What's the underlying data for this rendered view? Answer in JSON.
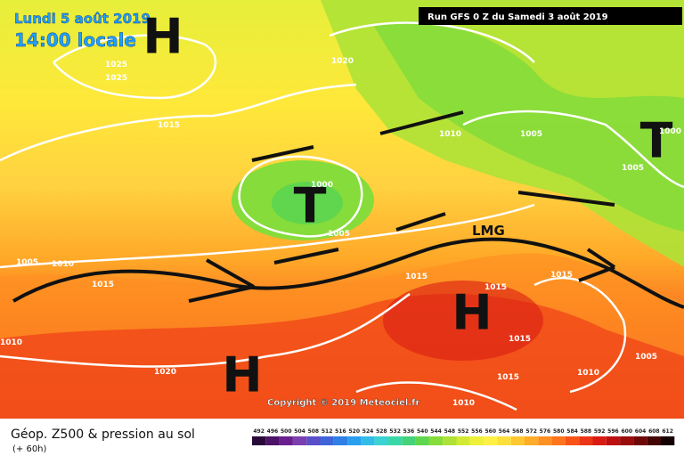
{
  "header": {
    "date": "Lundi 5 août 2019",
    "time": "14:00 locale",
    "run": "Run GFS 0 Z du Samedi 3 août 2019"
  },
  "map": {
    "pressure_systems": [
      "H",
      "T",
      "H",
      "H",
      "T"
    ],
    "isobar_labels": [
      "1025",
      "1025",
      "1020",
      "1015",
      "1010",
      "1005",
      "1005",
      "1000",
      "1000",
      "1005",
      "1005",
      "1010",
      "1015",
      "1015",
      "1015",
      "1015",
      "1015",
      "1010",
      "1020",
      "1015",
      "1010",
      "1005",
      "1010"
    ],
    "annotation": "LMG",
    "copyright": "Copyright © 2019 Meteociel.fr"
  },
  "legend": {
    "title": "Géop. Z500 & pression au sol",
    "subtitle": "(+ 60h)",
    "scale": [
      492,
      496,
      500,
      504,
      508,
      512,
      516,
      520,
      524,
      528,
      532,
      536,
      540,
      544,
      548,
      552,
      556,
      560,
      564,
      568,
      572,
      576,
      580,
      584,
      588,
      592,
      596,
      600,
      604,
      608,
      612
    ],
    "colors": [
      "#2a0a3a",
      "#4b1467",
      "#6a1f8f",
      "#7c3fb0",
      "#5a4fc8",
      "#3f63d8",
      "#2f7fe6",
      "#2a9ff0",
      "#32bde8",
      "#3ad2d2",
      "#3ad8a8",
      "#44d27a",
      "#5fd64e",
      "#86dc3a",
      "#aee236",
      "#d2ea34",
      "#eef03a",
      "#fff046",
      "#ffe03a",
      "#ffc830",
      "#ffac28",
      "#ff9022",
      "#ff741c",
      "#f85418",
      "#ec3416",
      "#d81c14",
      "#bc1010",
      "#980c0c",
      "#700808",
      "#440404",
      "#140000"
    ]
  }
}
